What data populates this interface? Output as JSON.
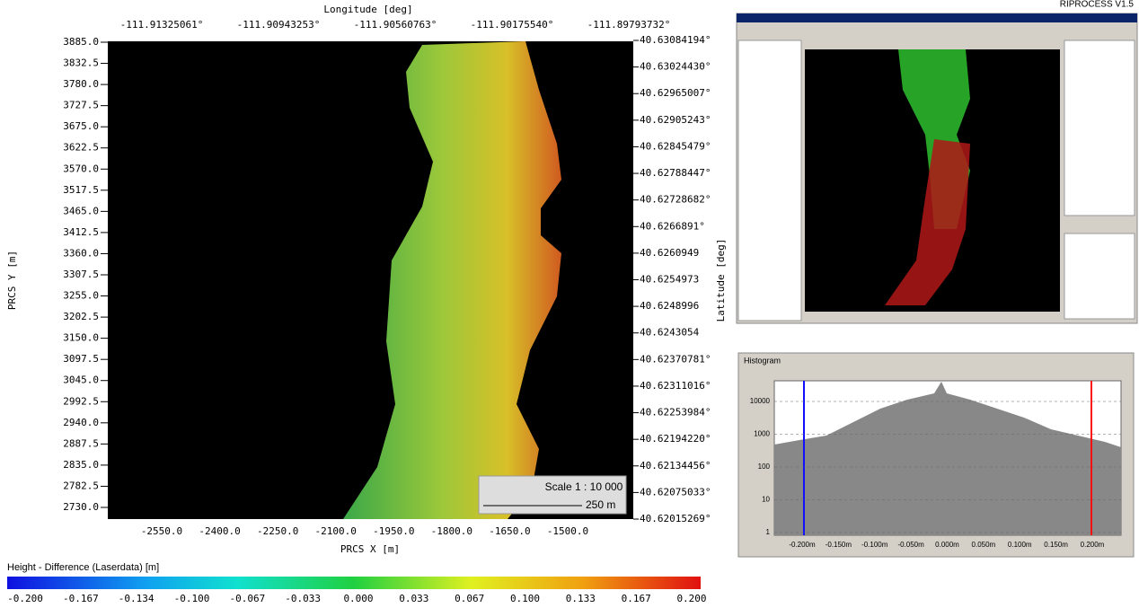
{
  "header": {
    "product": "RIPROCESS V1.5"
  },
  "map": {
    "top_axis_title": "Longitude [deg]",
    "top_ticks": [
      "-111.91325061°",
      "-111.90943253°",
      "-111.90560763°",
      "-111.90175540°",
      "-111.89793732°"
    ],
    "left_axis_title": "PRCS Y [m]",
    "left_ticks": [
      "3885.0",
      "3832.5",
      "3780.0",
      "3727.5",
      "3675.0",
      "3622.5",
      "3570.0",
      "3517.5",
      "3465.0",
      "3412.5",
      "3360.0",
      "3307.5",
      "3255.0",
      "3202.5",
      "3150.0",
      "3097.5",
      "3045.0",
      "2992.5",
      "2940.0",
      "2887.5",
      "2835.0",
      "2782.5",
      "2730.0"
    ],
    "right_axis_title": "Latitude [deg]",
    "right_ticks": [
      "40.63084194°",
      "40.63024430°",
      "40.62965007°",
      "40.62905243°",
      "40.62845479°",
      "40.62788447°",
      "40.62728682°",
      "40.6266891°",
      "40.6260949",
      "40.6254973",
      "40.6248996",
      "40.6243054",
      "40.62370781°",
      "40.62311016°",
      "40.62253984°",
      "40.62194220°",
      "40.62134456°",
      "40.62075033°",
      "40.62015269°"
    ],
    "bottom_axis_title": "PRCS X [m]",
    "bottom_ticks": [
      "-2550.0",
      "-2400.0",
      "-2250.0",
      "-2100.0",
      "-1950.0",
      "-1800.0",
      "-1650.0",
      "-1500.0"
    ],
    "scale": "Scale 1 :  10 000",
    "scale_length": "250 m"
  },
  "colorbar": {
    "title": "Height - Difference (Laserdata) [m]",
    "ticks": [
      "-0.200",
      "-0.167",
      "-0.134",
      "-0.100",
      "-0.067",
      "-0.033",
      "0.000",
      "0.033",
      "0.067",
      "0.100",
      "0.133",
      "0.167",
      "0.200"
    ]
  },
  "histogram": {
    "title": "Histogram",
    "y_ticks": [
      "10000",
      "1000",
      "100",
      "10",
      "1"
    ],
    "x_ticks": [
      "-0.200m",
      "-0.150m",
      "-0.100m",
      "-0.050m",
      "0.000m",
      "0.050m",
      "0.100m",
      "0.150m",
      "0.200m"
    ]
  }
}
